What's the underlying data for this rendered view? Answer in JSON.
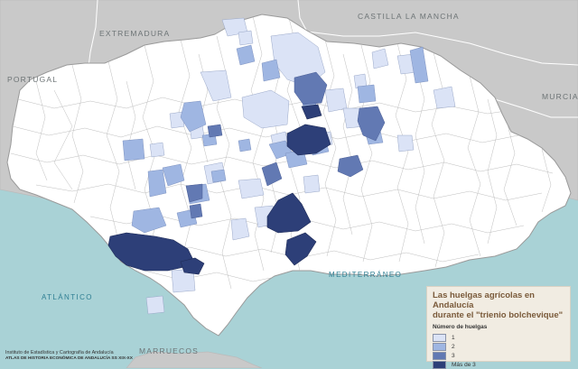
{
  "map": {
    "regions": {
      "castilla_la_mancha": "CASTILLA LA MANCHA",
      "extremadura": "EXTREMADURA",
      "portugal": "PORTUGAL",
      "murcia": "MURCIA",
      "marruecos": "MARRUECOS"
    },
    "seas": {
      "atlantico": "ATLÁNTICO",
      "mediterraneo": "MEDITERRÁNEO"
    }
  },
  "legend": {
    "title": "Las huelgas agrícolas en Andalucía\ndurante el \"trienio bolchevique\"",
    "subtitle": "Número de huelgas",
    "classes": [
      {
        "label": "1",
        "color": "#dbe3f6"
      },
      {
        "label": "2",
        "color": "#9fb6e2"
      },
      {
        "label": "3",
        "color": "#6279b3"
      },
      {
        "label": "Más de 3",
        "color": "#2d3f78"
      }
    ]
  },
  "credits": {
    "line1": "Instituto de Estadística y Cartografía de Andalucía",
    "line2": "ATLAS DE HISTORIA ECONÓMICA DE ANDALUCÍA SS XIX-XX"
  },
  "colors": {
    "land_outside": "#c9c9c9",
    "sea": "#a9d2d6",
    "andalucia": "#ffffff",
    "borders": "#b5b5b5"
  }
}
